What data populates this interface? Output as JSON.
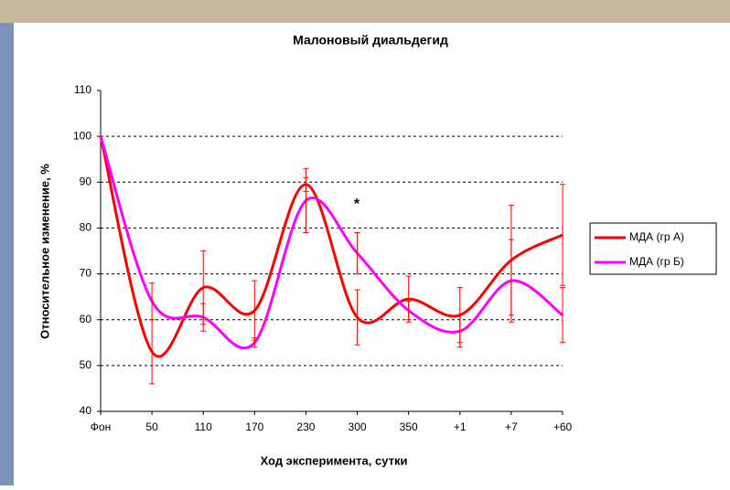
{
  "chart_data": {
    "type": "line",
    "title": "Малоновый диальдегид",
    "x_label": "Ход эксперимента, сутки",
    "y_label": "Относительное изменение, %",
    "annotation": "*",
    "categories": [
      "Фон",
      "50",
      "110",
      "170",
      "230",
      "300",
      "350",
      "+1",
      "+7",
      "+60"
    ],
    "series": [
      {
        "name": "МДА (гр А)",
        "color": "#ff0000",
        "values": [
          100,
          53,
          67,
          62,
          89.5,
          60.5,
          64.5,
          61,
          73,
          78.5
        ],
        "errors": [
          0,
          7,
          8,
          6.5,
          1.5,
          6,
          5,
          6,
          12,
          11
        ]
      },
      {
        "name": "МДА (гр Б)",
        "color": "#ff00ff",
        "values": [
          100,
          64,
          60.5,
          55,
          86,
          74.5,
          62,
          57.5,
          68.5,
          61
        ],
        "errors": [
          0,
          4,
          3,
          1,
          7,
          4.5,
          2,
          3.5,
          9,
          6
        ]
      }
    ],
    "ylim": [
      40,
      110
    ],
    "yticks": [
      40,
      50,
      60,
      70,
      80,
      90,
      100,
      110
    ],
    "grid": true,
    "legend": "right"
  }
}
